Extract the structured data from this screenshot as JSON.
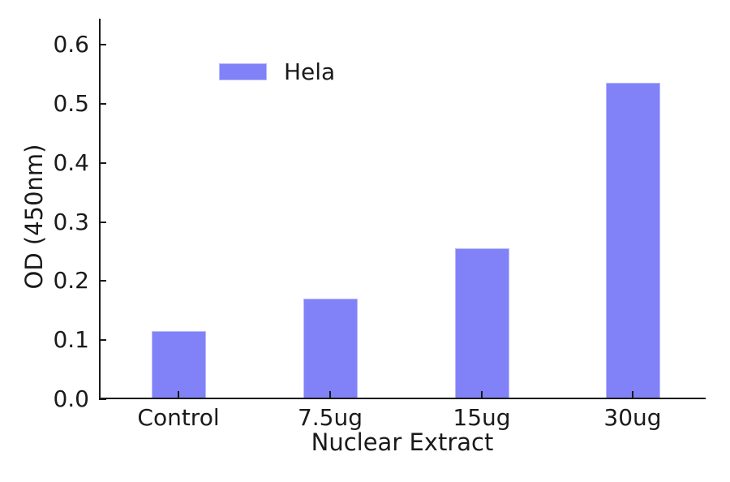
{
  "chart_data": {
    "type": "bar",
    "title": "",
    "categories": [
      "Control",
      "7.5ug",
      "15ug",
      "30ug"
    ],
    "series": [
      {
        "name": "Hela",
        "values": [
          0.115,
          0.17,
          0.255,
          0.535
        ]
      }
    ],
    "xlabel": "Nuclear Extract",
    "ylabel": "OD (450nm)",
    "ylim": [
      0,
      0.644
    ],
    "yticks": [
      0.0,
      0.1,
      0.2,
      0.3,
      0.4,
      0.5,
      0.6
    ],
    "ytick_format_decimals": 1,
    "legend": {
      "position": "upper-left",
      "entries": [
        "Hela"
      ]
    },
    "grid": false,
    "colors": {
      "bar": "#8181f8",
      "bar_edge": "#b9b9fa",
      "axis": "#1a1a1a",
      "text": "#1a1a1a",
      "background": "#ffffff"
    }
  }
}
